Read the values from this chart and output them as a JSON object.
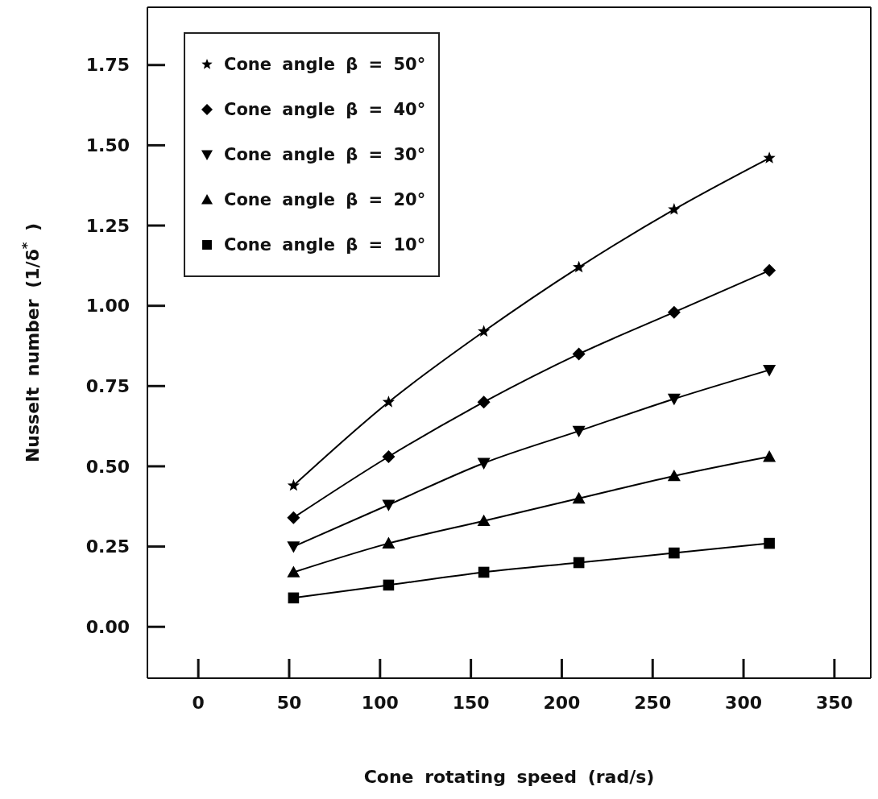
{
  "chart_data": {
    "type": "line",
    "xlabel": "Cone rotating speed (rad/s)",
    "ylabel": "Nusselt number (1/δ$^{*}$ )",
    "x": [
      52.4,
      104.7,
      157.1,
      209.4,
      261.8,
      314.2
    ],
    "series": [
      {
        "name": "Cone angle β = 50°",
        "color": "#000000",
        "marker": "star",
        "values": [
          0.44,
          0.7,
          0.92,
          1.12,
          1.3,
          1.46
        ]
      },
      {
        "name": "Cone angle β = 40°",
        "color": "#000000",
        "marker": "diamond",
        "values": [
          0.34,
          0.53,
          0.7,
          0.85,
          0.98,
          1.11
        ]
      },
      {
        "name": "Cone angle β = 30°",
        "color": "#000000",
        "marker": "triangle-down",
        "values": [
          0.25,
          0.38,
          0.51,
          0.61,
          0.71,
          0.8
        ]
      },
      {
        "name": "Cone angle β = 20°",
        "color": "#000000",
        "marker": "triangle",
        "values": [
          0.17,
          0.26,
          0.33,
          0.4,
          0.47,
          0.53
        ]
      },
      {
        "name": "Cone angle β = 10°",
        "color": "#000000",
        "marker": "square",
        "values": [
          0.09,
          0.13,
          0.17,
          0.2,
          0.23,
          0.26
        ]
      }
    ],
    "xlim": [
      -28,
      370
    ],
    "xticks": [
      0,
      50,
      100,
      150,
      200,
      250,
      300,
      350
    ],
    "ylim": [
      -0.16,
      1.93
    ],
    "yticks": [
      {
        "value": 0,
        "label": "0.00"
      },
      {
        "value": 0.25,
        "label": "0.25"
      },
      {
        "value": 0.5,
        "label": "0.50"
      },
      {
        "value": 0.75,
        "label": "0.75"
      },
      {
        "value": 1,
        "label": "1.00"
      },
      {
        "value": 1.25,
        "label": "1.25"
      },
      {
        "value": 1.5,
        "label": "1.50"
      },
      {
        "value": 1.75,
        "label": "1.75"
      }
    ],
    "legend": "top left",
    "grid": false,
    "line_style": "solid"
  }
}
